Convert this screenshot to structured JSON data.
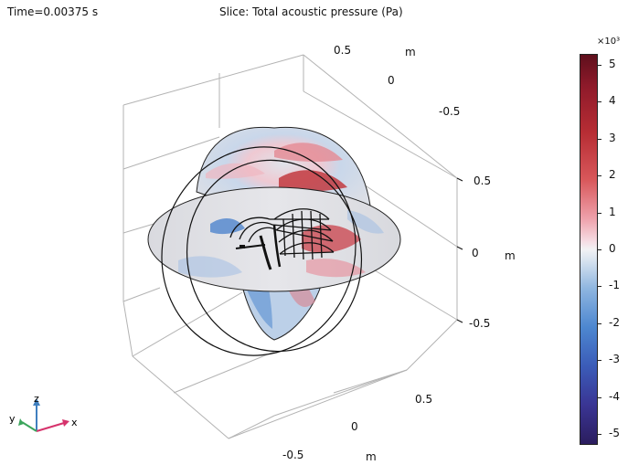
{
  "header": {
    "time": "Time=0.00375 s",
    "title": "Slice: Total acoustic pressure (Pa)"
  },
  "axes": {
    "x": {
      "ticks": [
        "-0.5",
        "0",
        "0.5"
      ],
      "unit": "m"
    },
    "y": {
      "ticks": [
        "0.5",
        "0",
        "-0.5"
      ],
      "unit": "m"
    },
    "z": {
      "ticks": [
        "0.5",
        "0",
        "-0.5"
      ],
      "unit": "m"
    }
  },
  "colorbar": {
    "multiplier": "×10³",
    "ticks": [
      "5",
      "4",
      "3",
      "2",
      "1",
      "0",
      "-1",
      "-2",
      "-3",
      "-4",
      "-5"
    ],
    "range": [
      -5.3,
      5.3
    ],
    "colormap_colors": [
      "#5e0f1c",
      "#b72d34",
      "#eea0aa",
      "#f2f2f4",
      "#8fb6e0",
      "#3b5cb8",
      "#2b1d5e"
    ]
  },
  "triad": {
    "x": "x",
    "y": "y",
    "z": "z",
    "colors": {
      "x": "#d6336c",
      "y": "#3ba55c",
      "z": "#3f7fbf"
    }
  }
}
